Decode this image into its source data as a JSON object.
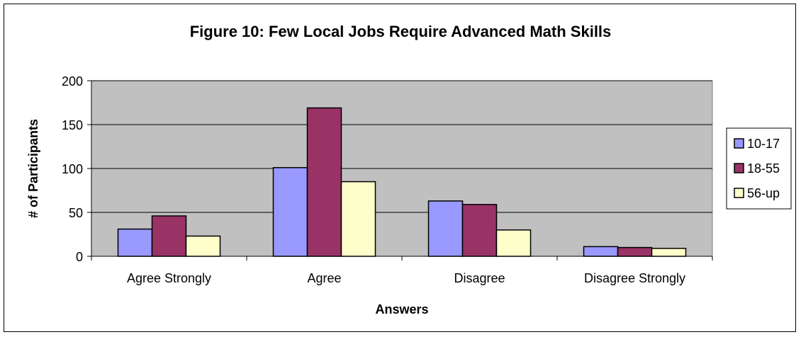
{
  "chart_data": {
    "type": "bar",
    "title": "Figure 10:  Few Local Jobs Require Advanced Math Skills",
    "xlabel": "Answers",
    "ylabel": "# of Participants",
    "categories": [
      "Agree Strongly",
      "Agree",
      "Disagree",
      "Disagree Strongly"
    ],
    "series": [
      {
        "name": "10-17",
        "values": [
          31,
          101,
          63,
          11
        ],
        "color": "#9999ff"
      },
      {
        "name": "18-55",
        "values": [
          46,
          169,
          59,
          10
        ],
        "color": "#993366"
      },
      {
        "name": "56-up",
        "values": [
          23,
          85,
          30,
          9
        ],
        "color": "#ffffcc"
      }
    ],
    "ylim": [
      0,
      200
    ],
    "yticks": [
      0,
      50,
      100,
      150,
      200
    ],
    "grid": true,
    "plot_background": "#c0c0c0",
    "legend_position": "right"
  }
}
